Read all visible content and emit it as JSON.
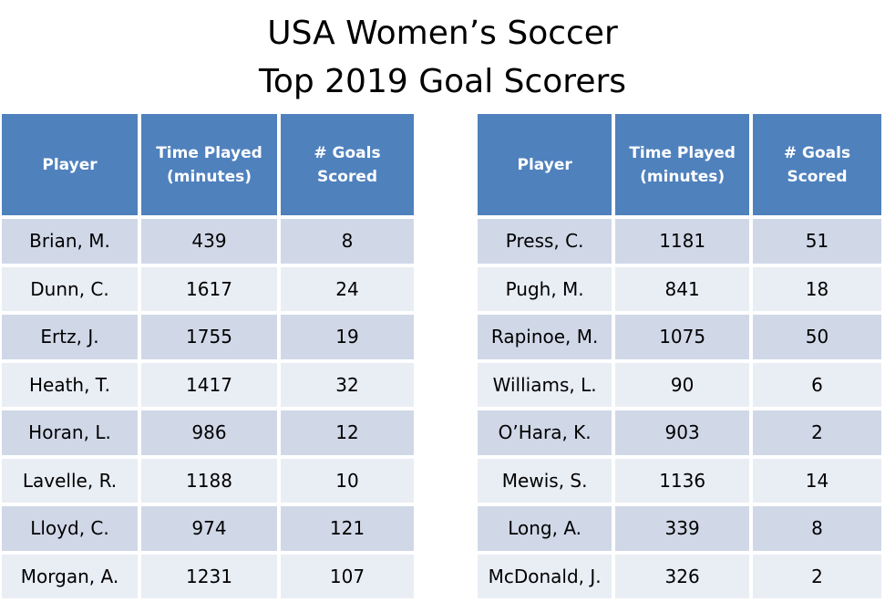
{
  "title": {
    "line1": "USA Women’s Soccer",
    "line2": "Top 2019 Goal Scorers"
  },
  "headers": {
    "player": "Player",
    "time_line1": "Time Played",
    "time_line2": "(minutes)",
    "goals_line1": "# Goals",
    "goals_line2": "Scored"
  },
  "colors": {
    "header_bg": "#4f81bd",
    "row_dark": "#d0d8e8",
    "row_light": "#e9edf4"
  },
  "left_table": [
    {
      "player": "Brian, M.",
      "time": "439",
      "goals": "8"
    },
    {
      "player": "Dunn, C.",
      "time": "1617",
      "goals": "24"
    },
    {
      "player": "Ertz, J.",
      "time": "1755",
      "goals": "19"
    },
    {
      "player": "Heath, T.",
      "time": "1417",
      "goals": "32"
    },
    {
      "player": "Horan, L.",
      "time": "986",
      "goals": "12"
    },
    {
      "player": "Lavelle, R.",
      "time": "1188",
      "goals": "10"
    },
    {
      "player": "Lloyd, C.",
      "time": "974",
      "goals": "121"
    },
    {
      "player": "Morgan, A.",
      "time": "1231",
      "goals": "107"
    }
  ],
  "right_table": [
    {
      "player": "Press, C.",
      "time": "1181",
      "goals": "51"
    },
    {
      "player": "Pugh, M.",
      "time": "841",
      "goals": "18"
    },
    {
      "player": "Rapinoe, M.",
      "time": "1075",
      "goals": "50"
    },
    {
      "player": "Williams, L.",
      "time": "90",
      "goals": "6"
    },
    {
      "player": "O’Hara, K.",
      "time": "903",
      "goals": "2"
    },
    {
      "player": "Mewis, S.",
      "time": "1136",
      "goals": "14"
    },
    {
      "player": "Long, A.",
      "time": "339",
      "goals": "8"
    },
    {
      "player": "McDonald, J.",
      "time": "326",
      "goals": "2"
    }
  ]
}
